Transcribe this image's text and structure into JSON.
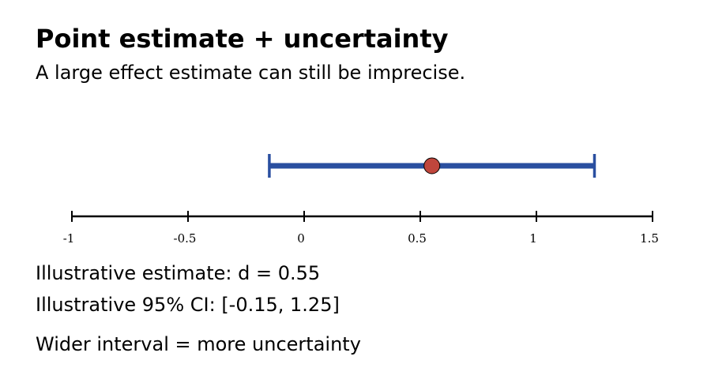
{
  "chart_data": {
    "type": "interval",
    "title": "Point estimate + uncertainty",
    "subtitle": "A large effect estimate can still be imprecise.",
    "estimate": 0.55,
    "ci": [
      -0.15,
      1.25
    ],
    "xlim": [
      -1,
      1.5
    ],
    "xticks": [
      -1,
      -0.5,
      0,
      0.5,
      1,
      1.5
    ],
    "interval_color": "#2a4fa0",
    "point_color": "#c0463c",
    "annotations": [
      "Illustrative estimate: d = 0.55",
      "Illustrative 95% CI: [-0.15, 1.25]",
      "Wider interval = more uncertainty"
    ]
  }
}
